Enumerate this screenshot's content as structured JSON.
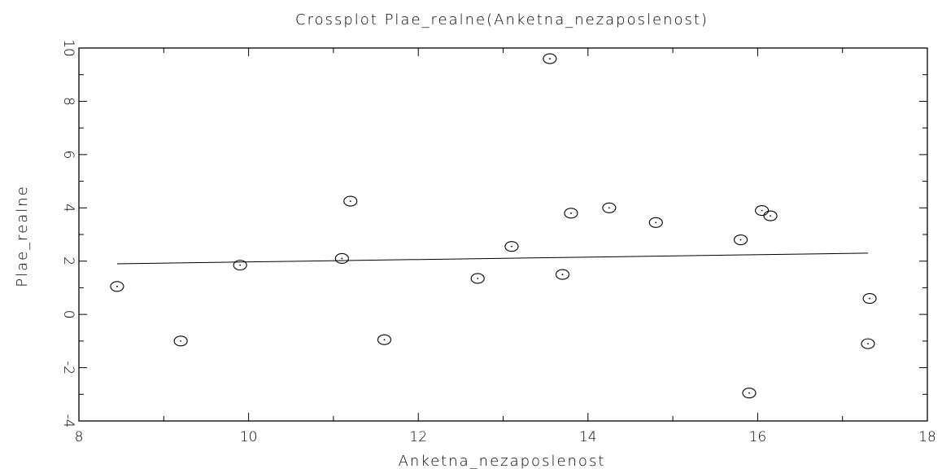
{
  "chart_data": {
    "type": "scatter",
    "title": "Crossplot Plae_realne(Anketna_nezaposlenost)",
    "xlabel": "Anketna_nezaposlenost",
    "ylabel": "Plae_realne",
    "xlim": [
      8,
      18
    ],
    "ylim": [
      -4,
      10
    ],
    "x_ticks": [
      "8",
      "10",
      "12",
      "14",
      "16",
      "18"
    ],
    "y_ticks": [
      "-4",
      "-2",
      "0",
      "2",
      "4",
      "6",
      "8",
      "10"
    ],
    "grid": false,
    "legend": "none",
    "series": [
      {
        "marker": "circle",
        "points": [
          {
            "x": 8.45,
            "y": 1.05
          },
          {
            "x": 9.2,
            "y": -1.0
          },
          {
            "x": 9.9,
            "y": 1.85
          },
          {
            "x": 11.1,
            "y": 2.1
          },
          {
            "x": 11.2,
            "y": 4.25
          },
          {
            "x": 11.6,
            "y": -0.95
          },
          {
            "x": 12.7,
            "y": 1.35
          },
          {
            "x": 13.1,
            "y": 2.55
          },
          {
            "x": 13.55,
            "y": 9.6
          },
          {
            "x": 13.7,
            "y": 1.5
          },
          {
            "x": 13.8,
            "y": 3.8
          },
          {
            "x": 14.25,
            "y": 4.0
          },
          {
            "x": 14.8,
            "y": 3.45
          },
          {
            "x": 15.8,
            "y": 2.8
          },
          {
            "x": 15.9,
            "y": -2.95
          },
          {
            "x": 16.05,
            "y": 3.9
          },
          {
            "x": 16.15,
            "y": 3.7
          },
          {
            "x": 17.3,
            "y": -1.1
          },
          {
            "x": 17.32,
            "y": 0.6
          }
        ]
      }
    ],
    "fit_line": {
      "x": [
        8.45,
        17.3
      ],
      "y": [
        1.9,
        2.3
      ]
    }
  }
}
